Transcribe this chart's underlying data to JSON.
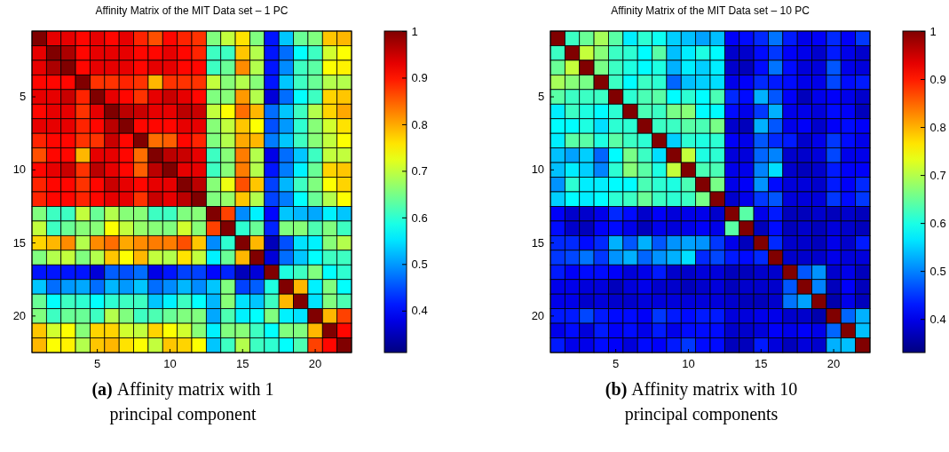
{
  "chart_data": [
    {
      "type": "heatmap",
      "title": "Affinity Matrix of the MIT Data set – 1 PC",
      "categories": [
        null,
        null,
        null,
        null,
        "5",
        null,
        null,
        null,
        null,
        "10",
        null,
        null,
        null,
        null,
        "15",
        null,
        null,
        null,
        null,
        "20",
        null,
        null
      ],
      "y_categories": [
        null,
        null,
        null,
        null,
        "5",
        null,
        null,
        null,
        null,
        "10",
        null,
        null,
        null,
        null,
        "15",
        null,
        null,
        null,
        null,
        "20",
        null,
        null
      ],
      "clim": [
        0.31,
        1
      ],
      "cticks": [
        0.4,
        0.5,
        0.6,
        0.7,
        0.8,
        0.9,
        1
      ],
      "annotations": [
        "(a) Affinity matrix with 1 principal component"
      ],
      "cells": [
        [
          1.0,
          0.93,
          0.93,
          0.91,
          0.93,
          0.91,
          0.93,
          0.89,
          0.86,
          0.91,
          0.89,
          0.88,
          0.655,
          0.7,
          0.76,
          0.655,
          0.41,
          0.53,
          0.64,
          0.655,
          0.78,
          0.79
        ],
        [
          0.93,
          1.0,
          0.97,
          0.91,
          0.93,
          0.93,
          0.93,
          0.91,
          0.91,
          0.93,
          0.91,
          0.89,
          0.61,
          0.61,
          0.78,
          0.69,
          0.41,
          0.47,
          0.57,
          0.61,
          0.71,
          0.74
        ],
        [
          0.93,
          0.97,
          1.0,
          0.91,
          0.93,
          0.93,
          0.93,
          0.91,
          0.93,
          0.93,
          0.91,
          0.91,
          0.61,
          0.64,
          0.82,
          0.69,
          0.41,
          0.49,
          0.61,
          0.63,
          0.74,
          0.75
        ],
        [
          0.91,
          0.91,
          0.91,
          1.0,
          0.88,
          0.88,
          0.89,
          0.88,
          0.79,
          0.88,
          0.88,
          0.88,
          0.7,
          0.66,
          0.69,
          0.66,
          0.41,
          0.53,
          0.61,
          0.64,
          0.69,
          0.69
        ],
        [
          0.93,
          0.93,
          0.95,
          0.89,
          1.0,
          0.93,
          0.91,
          0.88,
          0.93,
          0.95,
          0.93,
          0.91,
          0.655,
          0.66,
          0.81,
          0.69,
          0.37,
          0.47,
          0.57,
          0.61,
          0.77,
          0.78
        ],
        [
          0.91,
          0.93,
          0.93,
          0.88,
          0.93,
          1.0,
          0.96,
          0.95,
          0.93,
          0.93,
          0.96,
          0.95,
          0.7,
          0.74,
          0.84,
          0.79,
          0.47,
          0.53,
          0.61,
          0.69,
          0.77,
          0.8
        ],
        [
          0.93,
          0.93,
          0.93,
          0.89,
          0.91,
          0.96,
          1.0,
          0.91,
          0.91,
          0.91,
          0.93,
          0.93,
          0.66,
          0.7,
          0.78,
          0.74,
          0.45,
          0.5,
          0.6,
          0.66,
          0.71,
          0.76
        ],
        [
          0.89,
          0.91,
          0.91,
          0.88,
          0.88,
          0.95,
          0.91,
          1.0,
          0.84,
          0.85,
          0.91,
          0.89,
          0.655,
          0.69,
          0.8,
          0.79,
          0.48,
          0.53,
          0.61,
          0.66,
          0.7,
          0.74
        ],
        [
          0.86,
          0.91,
          0.91,
          0.79,
          0.93,
          0.93,
          0.91,
          0.84,
          1.0,
          0.96,
          0.95,
          0.93,
          0.61,
          0.66,
          0.83,
          0.69,
          0.38,
          0.47,
          0.53,
          0.61,
          0.7,
          0.7
        ],
        [
          0.91,
          0.93,
          0.95,
          0.88,
          0.96,
          0.93,
          0.91,
          0.85,
          0.96,
          1.0,
          0.93,
          0.93,
          0.61,
          0.66,
          0.83,
          0.69,
          0.41,
          0.48,
          0.56,
          0.64,
          0.77,
          0.78
        ],
        [
          0.89,
          0.91,
          0.91,
          0.88,
          0.91,
          0.95,
          0.93,
          0.91,
          0.93,
          0.93,
          1.0,
          0.96,
          0.66,
          0.73,
          0.86,
          0.78,
          0.44,
          0.52,
          0.61,
          0.655,
          0.74,
          0.77
        ],
        [
          0.89,
          0.91,
          0.91,
          0.89,
          0.91,
          0.93,
          0.93,
          0.88,
          0.95,
          0.93,
          0.96,
          1.0,
          0.655,
          0.67,
          0.78,
          0.69,
          0.44,
          0.48,
          0.57,
          0.64,
          0.69,
          0.74
        ],
        [
          0.655,
          0.61,
          0.61,
          0.7,
          0.64,
          0.69,
          0.66,
          0.66,
          0.61,
          0.61,
          0.655,
          0.66,
          1.0,
          0.87,
          0.49,
          0.56,
          0.4,
          0.53,
          0.52,
          0.51,
          0.56,
          0.53
        ],
        [
          0.7,
          0.61,
          0.64,
          0.66,
          0.66,
          0.74,
          0.7,
          0.67,
          0.66,
          0.655,
          0.71,
          0.66,
          0.87,
          1.0,
          0.6,
          0.64,
          0.42,
          0.655,
          0.66,
          0.62,
          0.655,
          0.61
        ],
        [
          0.77,
          0.79,
          0.82,
          0.69,
          0.82,
          0.84,
          0.8,
          0.82,
          0.83,
          0.83,
          0.86,
          0.78,
          0.49,
          0.6,
          1.0,
          0.79,
          0.35,
          0.45,
          0.55,
          0.56,
          0.66,
          0.69
        ],
        [
          0.655,
          0.69,
          0.7,
          0.655,
          0.69,
          0.78,
          0.74,
          0.79,
          0.7,
          0.69,
          0.76,
          0.7,
          0.56,
          0.64,
          0.79,
          1.0,
          0.37,
          0.47,
          0.53,
          0.57,
          0.61,
          0.61
        ],
        [
          0.41,
          0.41,
          0.41,
          0.41,
          0.37,
          0.46,
          0.45,
          0.47,
          0.38,
          0.41,
          0.44,
          0.44,
          0.4,
          0.42,
          0.35,
          0.37,
          1.0,
          0.59,
          0.61,
          0.655,
          0.57,
          0.6
        ],
        [
          0.53,
          0.47,
          0.5,
          0.51,
          0.47,
          0.52,
          0.5,
          0.53,
          0.47,
          0.49,
          0.52,
          0.49,
          0.53,
          0.655,
          0.44,
          0.46,
          0.59,
          1.0,
          0.79,
          0.56,
          0.655,
          0.57
        ],
        [
          0.64,
          0.57,
          0.61,
          0.6,
          0.57,
          0.6,
          0.61,
          0.61,
          0.53,
          0.56,
          0.61,
          0.57,
          0.52,
          0.66,
          0.55,
          0.53,
          0.61,
          0.79,
          1.0,
          0.55,
          0.655,
          0.62
        ],
        [
          0.655,
          0.61,
          0.64,
          0.64,
          0.61,
          0.69,
          0.655,
          0.61,
          0.62,
          0.64,
          0.655,
          0.655,
          0.51,
          0.62,
          0.56,
          0.57,
          0.655,
          0.56,
          0.55,
          1.0,
          0.79,
          0.87
        ],
        [
          0.78,
          0.71,
          0.74,
          0.66,
          0.77,
          0.77,
          0.71,
          0.7,
          0.77,
          0.74,
          0.71,
          0.66,
          0.56,
          0.655,
          0.66,
          0.61,
          0.57,
          0.655,
          0.655,
          0.79,
          1.0,
          0.91
        ],
        [
          0.79,
          0.74,
          0.75,
          0.69,
          0.78,
          0.79,
          0.76,
          0.74,
          0.7,
          0.78,
          0.77,
          0.74,
          0.53,
          0.61,
          0.69,
          0.61,
          0.6,
          0.57,
          0.62,
          0.87,
          0.91,
          1.0
        ]
      ]
    },
    {
      "type": "heatmap",
      "title": "Affinity Matrix of the MIT Data set – 10 PC",
      "categories": [
        null,
        null,
        null,
        null,
        "5",
        null,
        null,
        null,
        null,
        "10",
        null,
        null,
        null,
        null,
        "15",
        null,
        null,
        null,
        null,
        "20",
        null,
        null
      ],
      "y_categories": [
        null,
        null,
        null,
        null,
        "5",
        null,
        null,
        null,
        null,
        "10",
        null,
        null,
        null,
        null,
        "15",
        null,
        null,
        null,
        null,
        "20",
        null,
        null
      ],
      "clim": [
        0.33,
        1
      ],
      "cticks": [
        0.4,
        0.5,
        0.6,
        0.7,
        0.8,
        0.9,
        1
      ],
      "annotations": [
        "(b) Affinity matrix with 10 principal components"
      ],
      "cells": [
        [
          1.0,
          0.62,
          0.65,
          0.69,
          0.64,
          0.57,
          0.61,
          0.59,
          0.55,
          0.54,
          0.52,
          0.54,
          0.41,
          0.42,
          0.44,
          0.49,
          0.43,
          0.4,
          0.41,
          0.44,
          0.41,
          0.45
        ],
        [
          0.62,
          1.0,
          0.71,
          0.67,
          0.62,
          0.61,
          0.58,
          0.64,
          0.54,
          0.57,
          0.6,
          0.58,
          0.38,
          0.38,
          0.42,
          0.45,
          0.41,
          0.4,
          0.38,
          0.43,
          0.4,
          0.38
        ],
        [
          0.65,
          0.71,
          1.0,
          0.66,
          0.62,
          0.6,
          0.58,
          0.6,
          0.53,
          0.57,
          0.55,
          0.57,
          0.38,
          0.37,
          0.42,
          0.49,
          0.42,
          0.39,
          0.39,
          0.47,
          0.4,
          0.39
        ],
        [
          0.69,
          0.67,
          0.66,
          1.0,
          0.62,
          0.58,
          0.62,
          0.61,
          0.48,
          0.54,
          0.55,
          0.56,
          0.4,
          0.41,
          0.44,
          0.43,
          0.42,
          0.4,
          0.4,
          0.46,
          0.42,
          0.43
        ],
        [
          0.64,
          0.62,
          0.62,
          0.62,
          1.0,
          0.61,
          0.63,
          0.64,
          0.58,
          0.61,
          0.58,
          0.63,
          0.44,
          0.42,
          0.53,
          0.47,
          0.41,
          0.37,
          0.4,
          0.41,
          0.4,
          0.38
        ],
        [
          0.57,
          0.62,
          0.6,
          0.58,
          0.61,
          1.0,
          0.63,
          0.62,
          0.66,
          0.67,
          0.58,
          0.58,
          0.42,
          0.4,
          0.45,
          0.53,
          0.4,
          0.4,
          0.39,
          0.42,
          0.41,
          0.37
        ],
        [
          0.58,
          0.58,
          0.6,
          0.56,
          0.61,
          0.61,
          1.0,
          0.62,
          0.62,
          0.64,
          0.63,
          0.66,
          0.38,
          0.37,
          0.53,
          0.47,
          0.4,
          0.41,
          0.38,
          0.41,
          0.42,
          0.41
        ],
        [
          0.57,
          0.64,
          0.64,
          0.6,
          0.64,
          0.62,
          0.61,
          1.0,
          0.55,
          0.61,
          0.6,
          0.61,
          0.41,
          0.4,
          0.47,
          0.44,
          0.43,
          0.38,
          0.4,
          0.45,
          0.42,
          0.4
        ],
        [
          0.54,
          0.52,
          0.55,
          0.48,
          0.58,
          0.66,
          0.62,
          0.56,
          1.0,
          0.71,
          0.6,
          0.61,
          0.39,
          0.39,
          0.48,
          0.5,
          0.38,
          0.38,
          0.39,
          0.46,
          0.4,
          0.4
        ],
        [
          0.54,
          0.57,
          0.55,
          0.5,
          0.61,
          0.67,
          0.64,
          0.6,
          0.71,
          1.0,
          0.63,
          0.63,
          0.4,
          0.4,
          0.5,
          0.56,
          0.38,
          0.37,
          0.38,
          0.43,
          0.41,
          0.41
        ],
        [
          0.51,
          0.61,
          0.57,
          0.57,
          0.58,
          0.58,
          0.63,
          0.61,
          0.6,
          0.63,
          1.0,
          0.66,
          0.4,
          0.41,
          0.51,
          0.42,
          0.39,
          0.39,
          0.38,
          0.43,
          0.41,
          0.44
        ],
        [
          0.55,
          0.58,
          0.57,
          0.58,
          0.61,
          0.62,
          0.65,
          0.62,
          0.61,
          0.62,
          0.66,
          1.0,
          0.38,
          0.4,
          0.45,
          0.47,
          0.39,
          0.39,
          0.39,
          0.45,
          0.42,
          0.45
        ],
        [
          0.41,
          0.38,
          0.38,
          0.4,
          0.44,
          0.42,
          0.38,
          0.41,
          0.39,
          0.4,
          0.4,
          0.38,
          1.0,
          0.64,
          0.4,
          0.43,
          0.37,
          0.37,
          0.38,
          0.37,
          0.38,
          0.37
        ],
        [
          0.42,
          0.38,
          0.37,
          0.41,
          0.42,
          0.4,
          0.37,
          0.4,
          0.39,
          0.4,
          0.41,
          0.4,
          0.64,
          1.0,
          0.37,
          0.42,
          0.37,
          0.38,
          0.37,
          0.39,
          0.38,
          0.37
        ],
        [
          0.44,
          0.44,
          0.42,
          0.44,
          0.53,
          0.47,
          0.53,
          0.47,
          0.51,
          0.52,
          0.51,
          0.45,
          0.4,
          0.37,
          1.0,
          0.44,
          0.38,
          0.38,
          0.37,
          0.4,
          0.38,
          0.43
        ],
        [
          0.45,
          0.46,
          0.49,
          0.45,
          0.51,
          0.53,
          0.48,
          0.51,
          0.53,
          0.56,
          0.44,
          0.46,
          0.43,
          0.42,
          0.44,
          1.0,
          0.38,
          0.38,
          0.38,
          0.4,
          0.39,
          0.39
        ],
        [
          0.43,
          0.41,
          0.42,
          0.42,
          0.41,
          0.39,
          0.4,
          0.43,
          0.38,
          0.38,
          0.39,
          0.39,
          0.37,
          0.37,
          0.38,
          0.38,
          1.0,
          0.47,
          0.51,
          0.38,
          0.4,
          0.37
        ],
        [
          0.4,
          0.4,
          0.39,
          0.39,
          0.37,
          0.39,
          0.4,
          0.38,
          0.38,
          0.37,
          0.38,
          0.39,
          0.37,
          0.38,
          0.38,
          0.38,
          0.47,
          1.0,
          0.5,
          0.37,
          0.41,
          0.37
        ],
        [
          0.4,
          0.4,
          0.38,
          0.39,
          0.38,
          0.38,
          0.39,
          0.39,
          0.39,
          0.39,
          0.39,
          0.39,
          0.38,
          0.37,
          0.37,
          0.38,
          0.49,
          0.52,
          1.0,
          0.36,
          0.4,
          0.37
        ],
        [
          0.43,
          0.43,
          0.46,
          0.43,
          0.42,
          0.42,
          0.41,
          0.45,
          0.43,
          0.42,
          0.43,
          0.43,
          0.39,
          0.39,
          0.4,
          0.4,
          0.38,
          0.38,
          0.36,
          1.0,
          0.48,
          0.53
        ],
        [
          0.4,
          0.42,
          0.39,
          0.43,
          0.41,
          0.42,
          0.4,
          0.43,
          0.4,
          0.42,
          0.42,
          0.42,
          0.38,
          0.38,
          0.39,
          0.41,
          0.4,
          0.41,
          0.4,
          0.48,
          1.0,
          0.54
        ],
        [
          0.43,
          0.4,
          0.4,
          0.42,
          0.41,
          0.39,
          0.42,
          0.41,
          0.43,
          0.45,
          0.42,
          0.42,
          0.37,
          0.37,
          0.43,
          0.39,
          0.37,
          0.39,
          0.38,
          0.53,
          0.54,
          1.0
        ]
      ]
    }
  ]
}
